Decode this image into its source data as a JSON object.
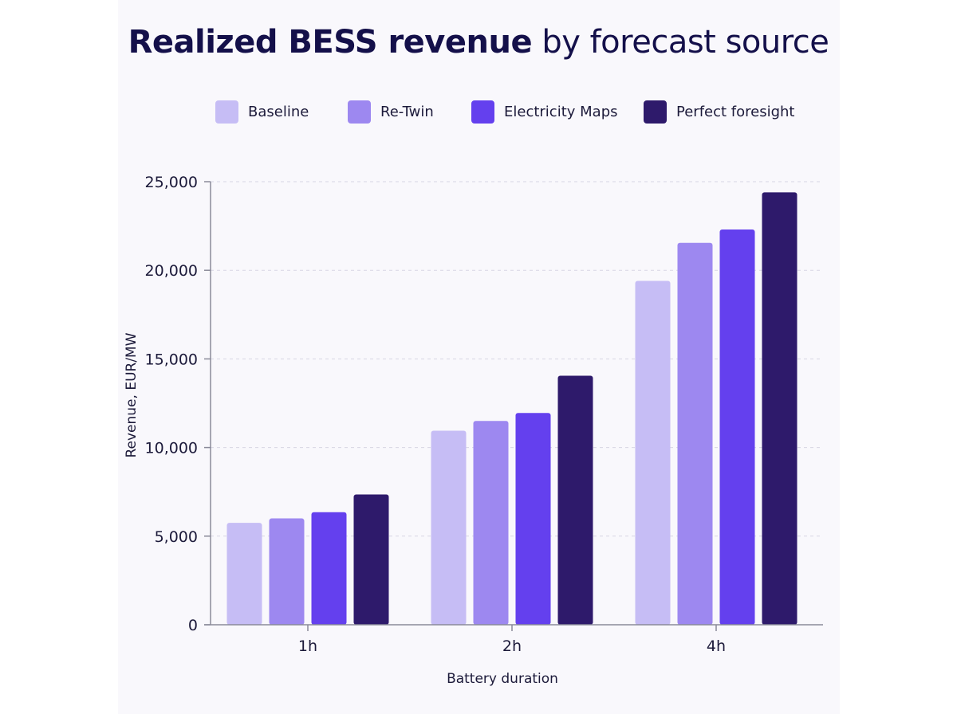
{
  "chart_data": {
    "type": "bar",
    "title_bold": "Realized BESS revenue",
    "title_rest": "by forecast source",
    "xlabel": "Battery duration",
    "ylabel": "Revenue, EUR/MW",
    "categories": [
      "1h",
      "2h",
      "4h"
    ],
    "yticks": [
      "0",
      "5,000",
      "10,000",
      "15,000",
      "20,000",
      "25,000"
    ],
    "ylim": [
      0,
      25000
    ],
    "grid": true,
    "legend_position": "top",
    "series": [
      {
        "name": "Baseline",
        "color": "#c6bdf5",
        "values": [
          5750,
          10950,
          19400
        ]
      },
      {
        "name": "Re-Twin",
        "color": "#9d88f0",
        "values": [
          6000,
          11500,
          21550
        ]
      },
      {
        "name": "Electricity Maps",
        "color": "#6440ee",
        "values": [
          6350,
          11950,
          22300
        ]
      },
      {
        "name": "Perfect foresight",
        "color": "#2e1a6b",
        "values": [
          7350,
          14050,
          24400
        ]
      }
    ]
  }
}
